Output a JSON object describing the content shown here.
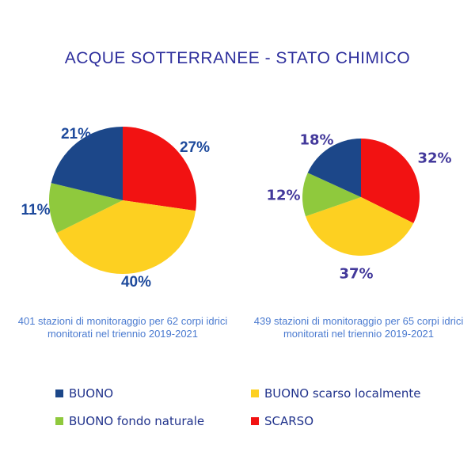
{
  "title": "ACQUE SOTTERRANEE - STATO CHIMICO",
  "colors": {
    "title": "#2e2f9d",
    "caption": "#4b7bd0",
    "legend_text": "#21338c",
    "left_label": "#1e4a9c",
    "right_label": "#43399b"
  },
  "chart_data": [
    {
      "type": "pie",
      "name": "left-pie",
      "caption": "401 stazioni di monitoraggio per 62 corpi idrici monitorati nel triennio 2019-2021",
      "categories": [
        "SCARSO",
        "BUONO scarso localmente",
        "BUONO fondo naturale",
        "BUONO"
      ],
      "values": [
        27,
        40,
        11,
        21
      ],
      "labels": [
        "27%",
        "40%",
        "11%",
        "21%"
      ],
      "colors": [
        "#f21212",
        "#fdd021",
        "#8fc93d",
        "#1c4789"
      ],
      "start_angle": "12-oclock",
      "direction": "clockwise",
      "radius_px": 93
    },
    {
      "type": "pie",
      "name": "right-pie",
      "caption": "439 stazioni di monitoraggio per 65 corpi idrici monitorati nel triennio 2019-2021",
      "categories": [
        "SCARSO",
        "BUONO scarso localmente",
        "BUONO fondo naturale",
        "BUONO"
      ],
      "values": [
        32,
        37,
        12,
        18
      ],
      "labels": [
        "32%",
        "37%",
        "12%",
        "18%"
      ],
      "colors": [
        "#f21212",
        "#fdd021",
        "#8fc93d",
        "#1c4789"
      ],
      "start_angle": "12-oclock",
      "direction": "clockwise",
      "radius_px": 74
    }
  ],
  "legend": {
    "items": [
      {
        "label": "BUONO",
        "color": "#1c4789"
      },
      {
        "label": "BUONO scarso localmente",
        "color": "#fdd021"
      },
      {
        "label": "BUONO fondo naturale",
        "color": "#8fc93d"
      },
      {
        "label": "SCARSO",
        "color": "#f21212"
      }
    ]
  }
}
